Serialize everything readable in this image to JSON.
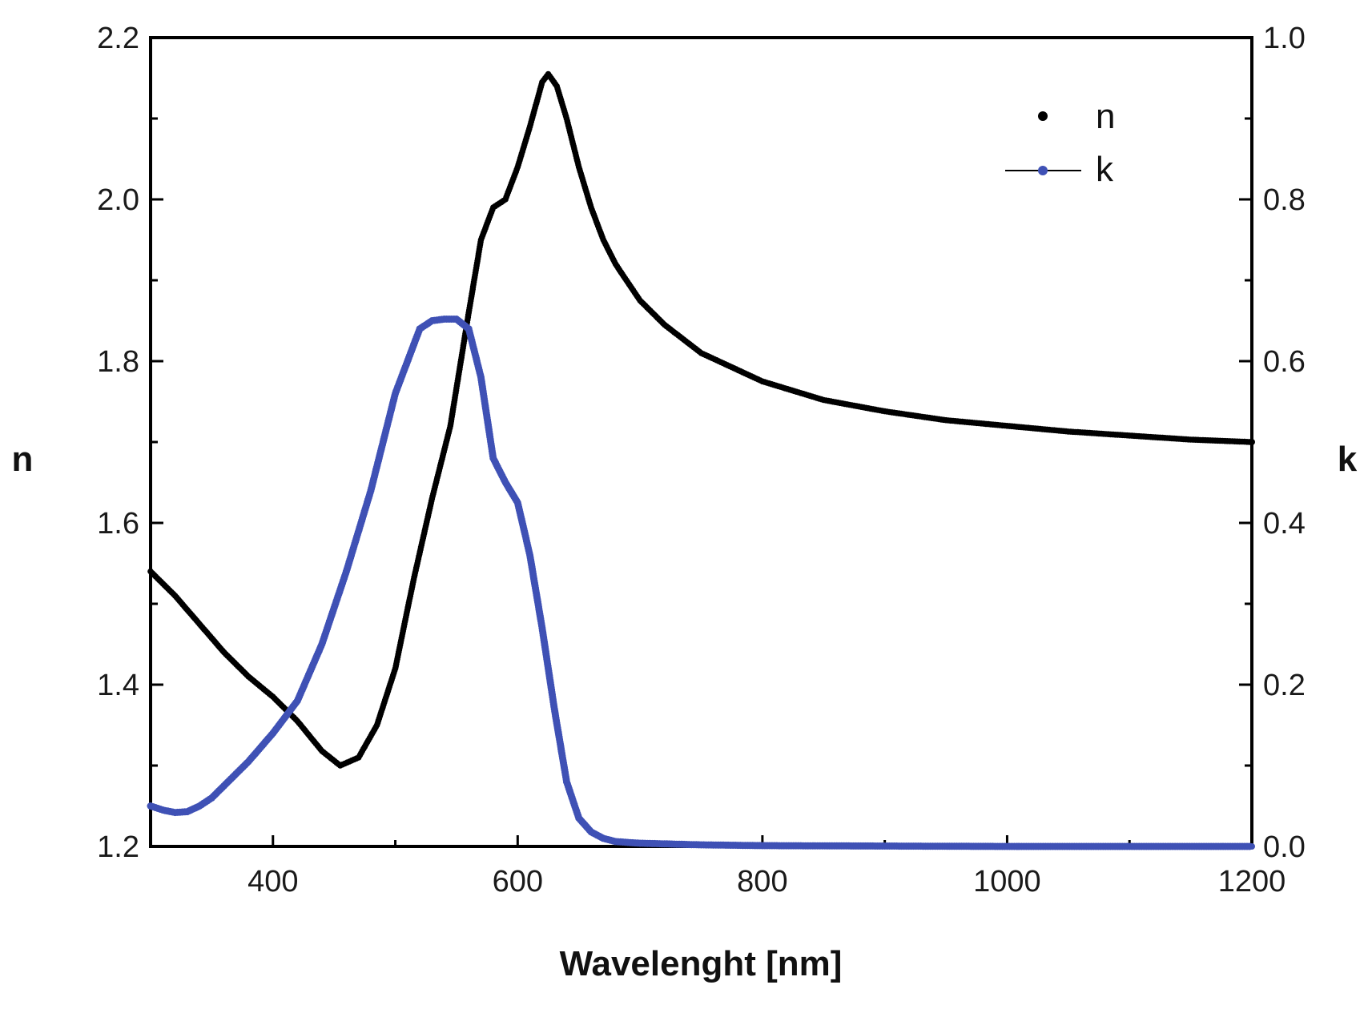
{
  "chart_data": {
    "type": "scatter",
    "xlabel": "Wavelenght [nm]",
    "ylabel_left": "n",
    "ylabel_right": "k",
    "xlim": [
      300,
      1200
    ],
    "ylim_left": [
      1.2,
      2.2
    ],
    "ylim_right": [
      0.0,
      1.0
    ],
    "x_ticks": [
      400,
      600,
      800,
      1000,
      1200
    ],
    "y_ticks_left": [
      "1.2",
      "1.4",
      "1.6",
      "1.8",
      "2.0",
      "2.2"
    ],
    "y_ticks_right": [
      "0.0",
      "0.2",
      "0.4",
      "0.6",
      "0.8",
      "1.0"
    ],
    "legend": {
      "position": "top-right",
      "entries": [
        "n",
        "k"
      ]
    },
    "grid": false,
    "colors": {
      "n": "#000000",
      "k": "#3f51b5"
    },
    "series": [
      {
        "name": "n",
        "axis": "left",
        "x": [
          300,
          320,
          340,
          360,
          380,
          400,
          420,
          440,
          455,
          470,
          485,
          500,
          515,
          530,
          545,
          560,
          570,
          580,
          590,
          600,
          610,
          620,
          625,
          632,
          640,
          650,
          660,
          670,
          680,
          700,
          720,
          750,
          800,
          850,
          900,
          950,
          1000,
          1050,
          1100,
          1150,
          1200
        ],
        "y": [
          1.54,
          1.51,
          1.475,
          1.44,
          1.41,
          1.385,
          1.355,
          1.318,
          1.3,
          1.31,
          1.35,
          1.42,
          1.53,
          1.63,
          1.72,
          1.86,
          1.95,
          1.99,
          2.0,
          2.04,
          2.09,
          2.145,
          2.155,
          2.14,
          2.1,
          2.04,
          1.99,
          1.95,
          1.92,
          1.875,
          1.845,
          1.81,
          1.775,
          1.752,
          1.738,
          1.727,
          1.72,
          1.713,
          1.708,
          1.703,
          1.7
        ]
      },
      {
        "name": "k",
        "axis": "right",
        "x": [
          300,
          310,
          320,
          330,
          340,
          350,
          360,
          380,
          400,
          420,
          440,
          460,
          480,
          500,
          520,
          530,
          540,
          550,
          560,
          570,
          580,
          590,
          600,
          610,
          620,
          630,
          640,
          650,
          660,
          670,
          680,
          700,
          750,
          800,
          900,
          1000,
          1100,
          1200
        ],
        "y": [
          0.05,
          0.045,
          0.042,
          0.043,
          0.05,
          0.06,
          0.075,
          0.105,
          0.14,
          0.18,
          0.25,
          0.34,
          0.44,
          0.56,
          0.64,
          0.65,
          0.652,
          0.652,
          0.64,
          0.58,
          0.48,
          0.45,
          0.425,
          0.36,
          0.27,
          0.17,
          0.08,
          0.035,
          0.018,
          0.01,
          0.006,
          0.004,
          0.002,
          0.001,
          0.0005,
          0.0,
          0.0,
          0.0
        ]
      }
    ]
  }
}
